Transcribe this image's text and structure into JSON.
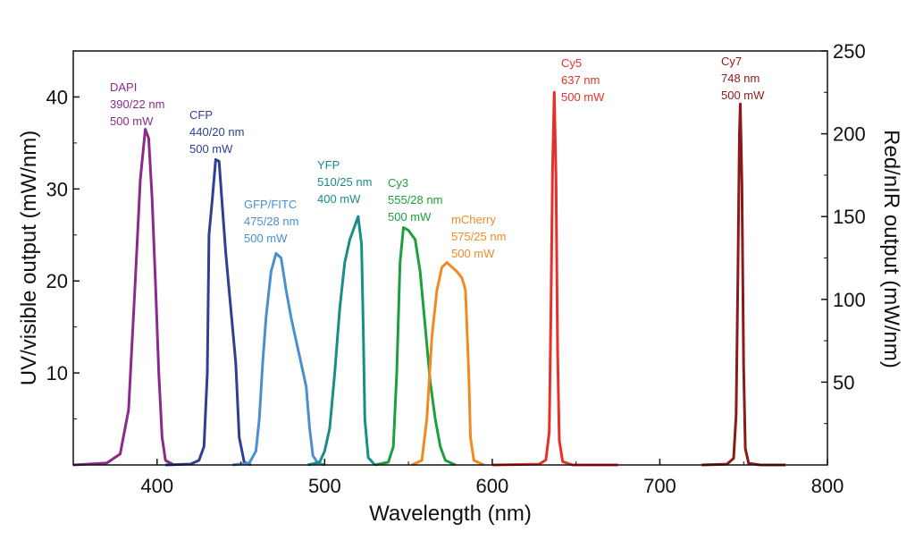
{
  "chart_data": {
    "type": "line",
    "xlabel": "Wavelength (nm)",
    "ylabel_left": "UV/visible output (mW/nm)",
    "ylabel_right": "Red/nIR output (mW/nm)",
    "xlim": [
      350,
      800
    ],
    "ylim_left": [
      0,
      45
    ],
    "ylim_right": [
      0,
      250
    ],
    "x_ticks": [
      400,
      500,
      600,
      700,
      800
    ],
    "y_left_ticks": [
      10,
      20,
      30,
      40
    ],
    "y_right_ticks": [
      50,
      100,
      150,
      200,
      250
    ],
    "grid": false,
    "series": [
      {
        "name": "DAPI",
        "spec": "390/22 nm",
        "power": "500 mW",
        "color": "#8B2A8C",
        "axis": "left",
        "points": [
          [
            350,
            0
          ],
          [
            370,
            0.2
          ],
          [
            378,
            1.2
          ],
          [
            383,
            6
          ],
          [
            387,
            20
          ],
          [
            390,
            31
          ],
          [
            393,
            36.5
          ],
          [
            395,
            35.5
          ],
          [
            397,
            29
          ],
          [
            399,
            20
          ],
          [
            401,
            10
          ],
          [
            403,
            3
          ],
          [
            405,
            0.5
          ],
          [
            410,
            0
          ]
        ]
      },
      {
        "name": "CFP",
        "spec": "440/20 nm",
        "power": "500 mW",
        "color": "#2E3F95",
        "axis": "left",
        "points": [
          [
            405,
            0
          ],
          [
            420,
            0.1
          ],
          [
            425,
            0.5
          ],
          [
            428,
            2
          ],
          [
            430,
            10
          ],
          [
            431,
            25
          ],
          [
            433,
            29
          ],
          [
            435,
            33.2
          ],
          [
            437,
            33
          ],
          [
            439,
            28
          ],
          [
            441,
            23
          ],
          [
            443,
            19
          ],
          [
            445,
            15
          ],
          [
            447,
            11
          ],
          [
            449,
            3
          ],
          [
            452,
            0.3
          ],
          [
            456,
            0
          ]
        ]
      },
      {
        "name": "GFP/FITC",
        "spec": "475/28 nm",
        "power": "500 mW",
        "color": "#4A8FCF",
        "axis": "left",
        "points": [
          [
            445,
            0
          ],
          [
            455,
            0.2
          ],
          [
            459,
            1.5
          ],
          [
            461,
            5
          ],
          [
            463,
            11
          ],
          [
            465,
            16
          ],
          [
            468,
            21
          ],
          [
            471,
            23
          ],
          [
            474,
            22.5
          ],
          [
            477,
            19
          ],
          [
            480,
            16
          ],
          [
            483,
            13.5
          ],
          [
            486,
            11
          ],
          [
            489,
            8.5
          ],
          [
            491,
            4
          ],
          [
            493,
            1
          ],
          [
            496,
            0.2
          ],
          [
            500,
            0
          ]
        ]
      },
      {
        "name": "YFP",
        "spec": "510/25 nm",
        "power": "400 mW",
        "color": "#1A8C8A",
        "axis": "left",
        "points": [
          [
            490,
            0
          ],
          [
            497,
            0.3
          ],
          [
            500,
            1.5
          ],
          [
            503,
            4
          ],
          [
            506,
            10
          ],
          [
            509,
            17
          ],
          [
            512,
            22
          ],
          [
            515,
            24.5
          ],
          [
            518,
            26
          ],
          [
            520,
            27
          ],
          [
            522,
            24
          ],
          [
            523,
            15
          ],
          [
            524,
            5
          ],
          [
            526,
            0.8
          ],
          [
            530,
            0
          ]
        ]
      },
      {
        "name": "Cy3",
        "spec": "555/28 nm",
        "power": "500 mW",
        "color": "#1E9E3E",
        "axis": "left",
        "points": [
          [
            530,
            0
          ],
          [
            538,
            0.3
          ],
          [
            541,
            2
          ],
          [
            543,
            10
          ],
          [
            545,
            22
          ],
          [
            547,
            25.8
          ],
          [
            550,
            25.5
          ],
          [
            554,
            24.5
          ],
          [
            557,
            21
          ],
          [
            560,
            15
          ],
          [
            563,
            9
          ],
          [
            566,
            5
          ],
          [
            569,
            2
          ],
          [
            572,
            0.5
          ],
          [
            578,
            0
          ]
        ]
      },
      {
        "name": "mCherry",
        "spec": "575/25 nm",
        "power": "500 mW",
        "color": "#F28A24",
        "axis": "left",
        "points": [
          [
            552,
            0
          ],
          [
            558,
            0.5
          ],
          [
            561,
            5
          ],
          [
            564,
            14
          ],
          [
            567,
            19
          ],
          [
            570,
            21.5
          ],
          [
            573,
            22
          ],
          [
            576,
            21.5
          ],
          [
            579,
            21
          ],
          [
            582,
            20.3
          ],
          [
            584,
            19
          ],
          [
            586,
            10
          ],
          [
            587,
            3
          ],
          [
            589,
            0.5
          ],
          [
            595,
            0
          ]
        ]
      },
      {
        "name": "Cy5",
        "spec": "637 nm",
        "power": "500 mW",
        "color": "#E8302A",
        "axis": "right",
        "points": [
          [
            600,
            0
          ],
          [
            628,
            0.5
          ],
          [
            632,
            3
          ],
          [
            634,
            20
          ],
          [
            635,
            90
          ],
          [
            636,
            180
          ],
          [
            637,
            225
          ],
          [
            638,
            175
          ],
          [
            639,
            70
          ],
          [
            640,
            15
          ],
          [
            642,
            2
          ],
          [
            648,
            0
          ],
          [
            675,
            0
          ]
        ]
      },
      {
        "name": "Cy7",
        "spec": "748 nm",
        "power": "500 mW",
        "color": "#8B1A1A",
        "axis": "right",
        "points": [
          [
            725,
            0
          ],
          [
            740,
            0.5
          ],
          [
            744,
            4
          ],
          [
            745.5,
            30
          ],
          [
            746.5,
            110
          ],
          [
            747.5,
            200
          ],
          [
            748,
            218
          ],
          [
            749,
            170
          ],
          [
            750,
            60
          ],
          [
            751,
            10
          ],
          [
            753,
            1
          ],
          [
            760,
            0
          ],
          [
            775,
            0
          ]
        ]
      }
    ]
  }
}
